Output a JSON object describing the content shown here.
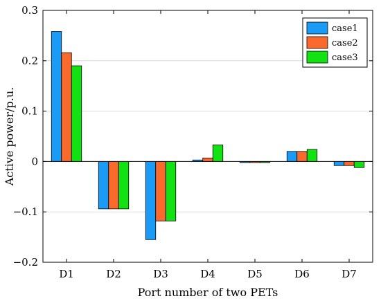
{
  "chart_data": {
    "type": "bar",
    "xlabel": "Port number of two PETs",
    "ylabel": "Active power/p.u.",
    "categories": [
      "D1",
      "D2",
      "D3",
      "D4",
      "D5",
      "D6",
      "D7"
    ],
    "ylim": [
      -0.2,
      0.3
    ],
    "yticks": [
      -0.2,
      -0.1,
      0,
      0.1,
      0.2,
      0.3
    ],
    "ytick_labels": [
      "−0.2",
      "−0.1",
      "0",
      "0.1",
      "0.2",
      "0.3"
    ],
    "grid": "horizontal",
    "legend_position": "top-right",
    "series": [
      {
        "name": "case1",
        "color": "#1a9bf5",
        "values": [
          0.258,
          -0.094,
          -0.155,
          0.003,
          -0.002,
          0.02,
          -0.008
        ]
      },
      {
        "name": "case2",
        "color": "#fa6a2d",
        "values": [
          0.216,
          -0.094,
          -0.118,
          0.007,
          -0.002,
          0.02,
          -0.008
        ]
      },
      {
        "name": "case3",
        "color": "#12e212",
        "values": [
          0.19,
          -0.094,
          -0.118,
          0.033,
          -0.002,
          0.024,
          -0.012
        ]
      }
    ]
  }
}
